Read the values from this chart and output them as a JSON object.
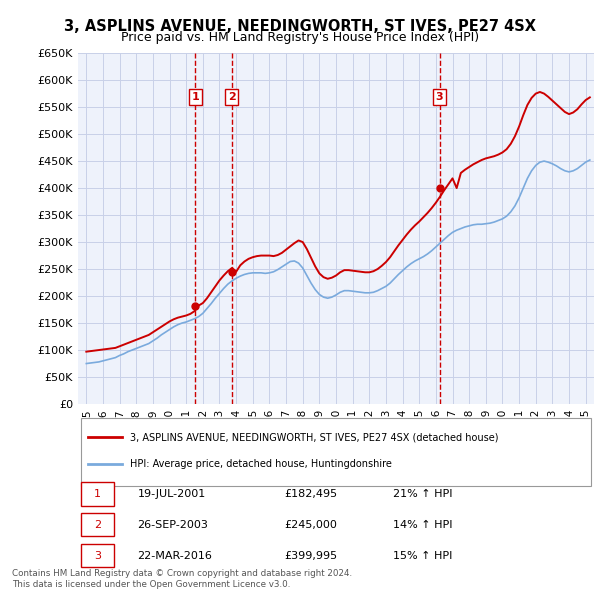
{
  "title": "3, ASPLINS AVENUE, NEEDINGWORTH, ST IVES, PE27 4SX",
  "subtitle": "Price paid vs. HM Land Registry's House Price Index (HPI)",
  "ylabel_ticks": [
    "£0",
    "£50K",
    "£100K",
    "£150K",
    "£200K",
    "£250K",
    "£300K",
    "£350K",
    "£400K",
    "£450K",
    "£500K",
    "£550K",
    "£600K",
    "£650K"
  ],
  "ytick_values": [
    0,
    50000,
    100000,
    150000,
    200000,
    250000,
    300000,
    350000,
    400000,
    450000,
    500000,
    550000,
    600000,
    650000
  ],
  "xlim": [
    1994.5,
    2025.5
  ],
  "ylim": [
    0,
    650000
  ],
  "background_color": "#eef2fb",
  "grid_color": "#c8d0e8",
  "hpi_color": "#7aaadd",
  "price_color": "#cc0000",
  "vline_color": "#cc0000",
  "sale_dates": [
    2001.54,
    2003.74,
    2016.22
  ],
  "sale_prices": [
    182495,
    245000,
    399995
  ],
  "sale_labels": [
    "1",
    "2",
    "3"
  ],
  "legend_price_label": "3, ASPLINS AVENUE, NEEDINGWORTH, ST IVES, PE27 4SX (detached house)",
  "legend_hpi_label": "HPI: Average price, detached house, Huntingdonshire",
  "table_data": [
    {
      "num": "1",
      "date": "19-JUL-2001",
      "price": "£182,495",
      "change": "21% ↑ HPI"
    },
    {
      "num": "2",
      "date": "26-SEP-2003",
      "price": "£245,000",
      "change": "14% ↑ HPI"
    },
    {
      "num": "3",
      "date": "22-MAR-2016",
      "price": "£399,995",
      "change": "15% ↑ HPI"
    }
  ],
  "footer": "Contains HM Land Registry data © Crown copyright and database right 2024.\nThis data is licensed under the Open Government Licence v3.0.",
  "hpi_y": [
    75000,
    76000,
    77000,
    78000,
    80000,
    82000,
    84000,
    86000,
    90000,
    93000,
    97000,
    100000,
    103000,
    106000,
    109000,
    112000,
    117000,
    122000,
    128000,
    133000,
    138000,
    143000,
    147000,
    150000,
    152000,
    155000,
    158000,
    162000,
    168000,
    177000,
    186000,
    196000,
    205000,
    214000,
    222000,
    228000,
    233000,
    237000,
    240000,
    242000,
    243000,
    243000,
    243000,
    242000,
    243000,
    245000,
    249000,
    254000,
    259000,
    264000,
    265000,
    261000,
    252000,
    238000,
    224000,
    212000,
    203000,
    198000,
    196000,
    198000,
    202000,
    207000,
    210000,
    210000,
    209000,
    208000,
    207000,
    206000,
    206000,
    207000,
    210000,
    214000,
    218000,
    224000,
    232000,
    240000,
    247000,
    254000,
    260000,
    265000,
    269000,
    273000,
    278000,
    284000,
    291000,
    298000,
    305000,
    312000,
    318000,
    322000,
    325000,
    328000,
    330000,
    332000,
    333000,
    333000,
    334000,
    335000,
    337000,
    340000,
    343000,
    348000,
    356000,
    367000,
    382000,
    400000,
    418000,
    432000,
    442000,
    448000,
    450000,
    448000,
    445000,
    441000,
    436000,
    432000,
    430000,
    432000,
    436000,
    442000,
    448000,
    452000
  ],
  "price_y": [
    97000,
    98000,
    99000,
    100000,
    101000,
    102000,
    103000,
    104000,
    107000,
    110000,
    113000,
    116000,
    119000,
    122000,
    125000,
    128000,
    133000,
    138000,
    143000,
    148000,
    153000,
    157000,
    160000,
    162000,
    164000,
    167000,
    172000,
    182495,
    187000,
    196000,
    207000,
    218000,
    229000,
    238000,
    246000,
    252000,
    245000,
    257000,
    264000,
    269000,
    272000,
    274000,
    275000,
    275000,
    275000,
    274000,
    276000,
    280000,
    286000,
    292000,
    298000,
    303000,
    300000,
    287000,
    271000,
    255000,
    242000,
    235000,
    232000,
    234000,
    238000,
    244000,
    248000,
    248000,
    247000,
    246000,
    245000,
    244000,
    244000,
    246000,
    250000,
    256000,
    263000,
    272000,
    283000,
    294000,
    304000,
    314000,
    323000,
    331000,
    338000,
    346000,
    354000,
    363000,
    373000,
    384000,
    396000,
    407000,
    418000,
    399995,
    428000,
    434000,
    439000,
    444000,
    448000,
    452000,
    455000,
    457000,
    459000,
    462000,
    466000,
    472000,
    482000,
    496000,
    514000,
    535000,
    554000,
    567000,
    575000,
    578000,
    575000,
    569000,
    562000,
    555000,
    548000,
    541000,
    537000,
    540000,
    546000,
    555000,
    563000,
    568000
  ]
}
